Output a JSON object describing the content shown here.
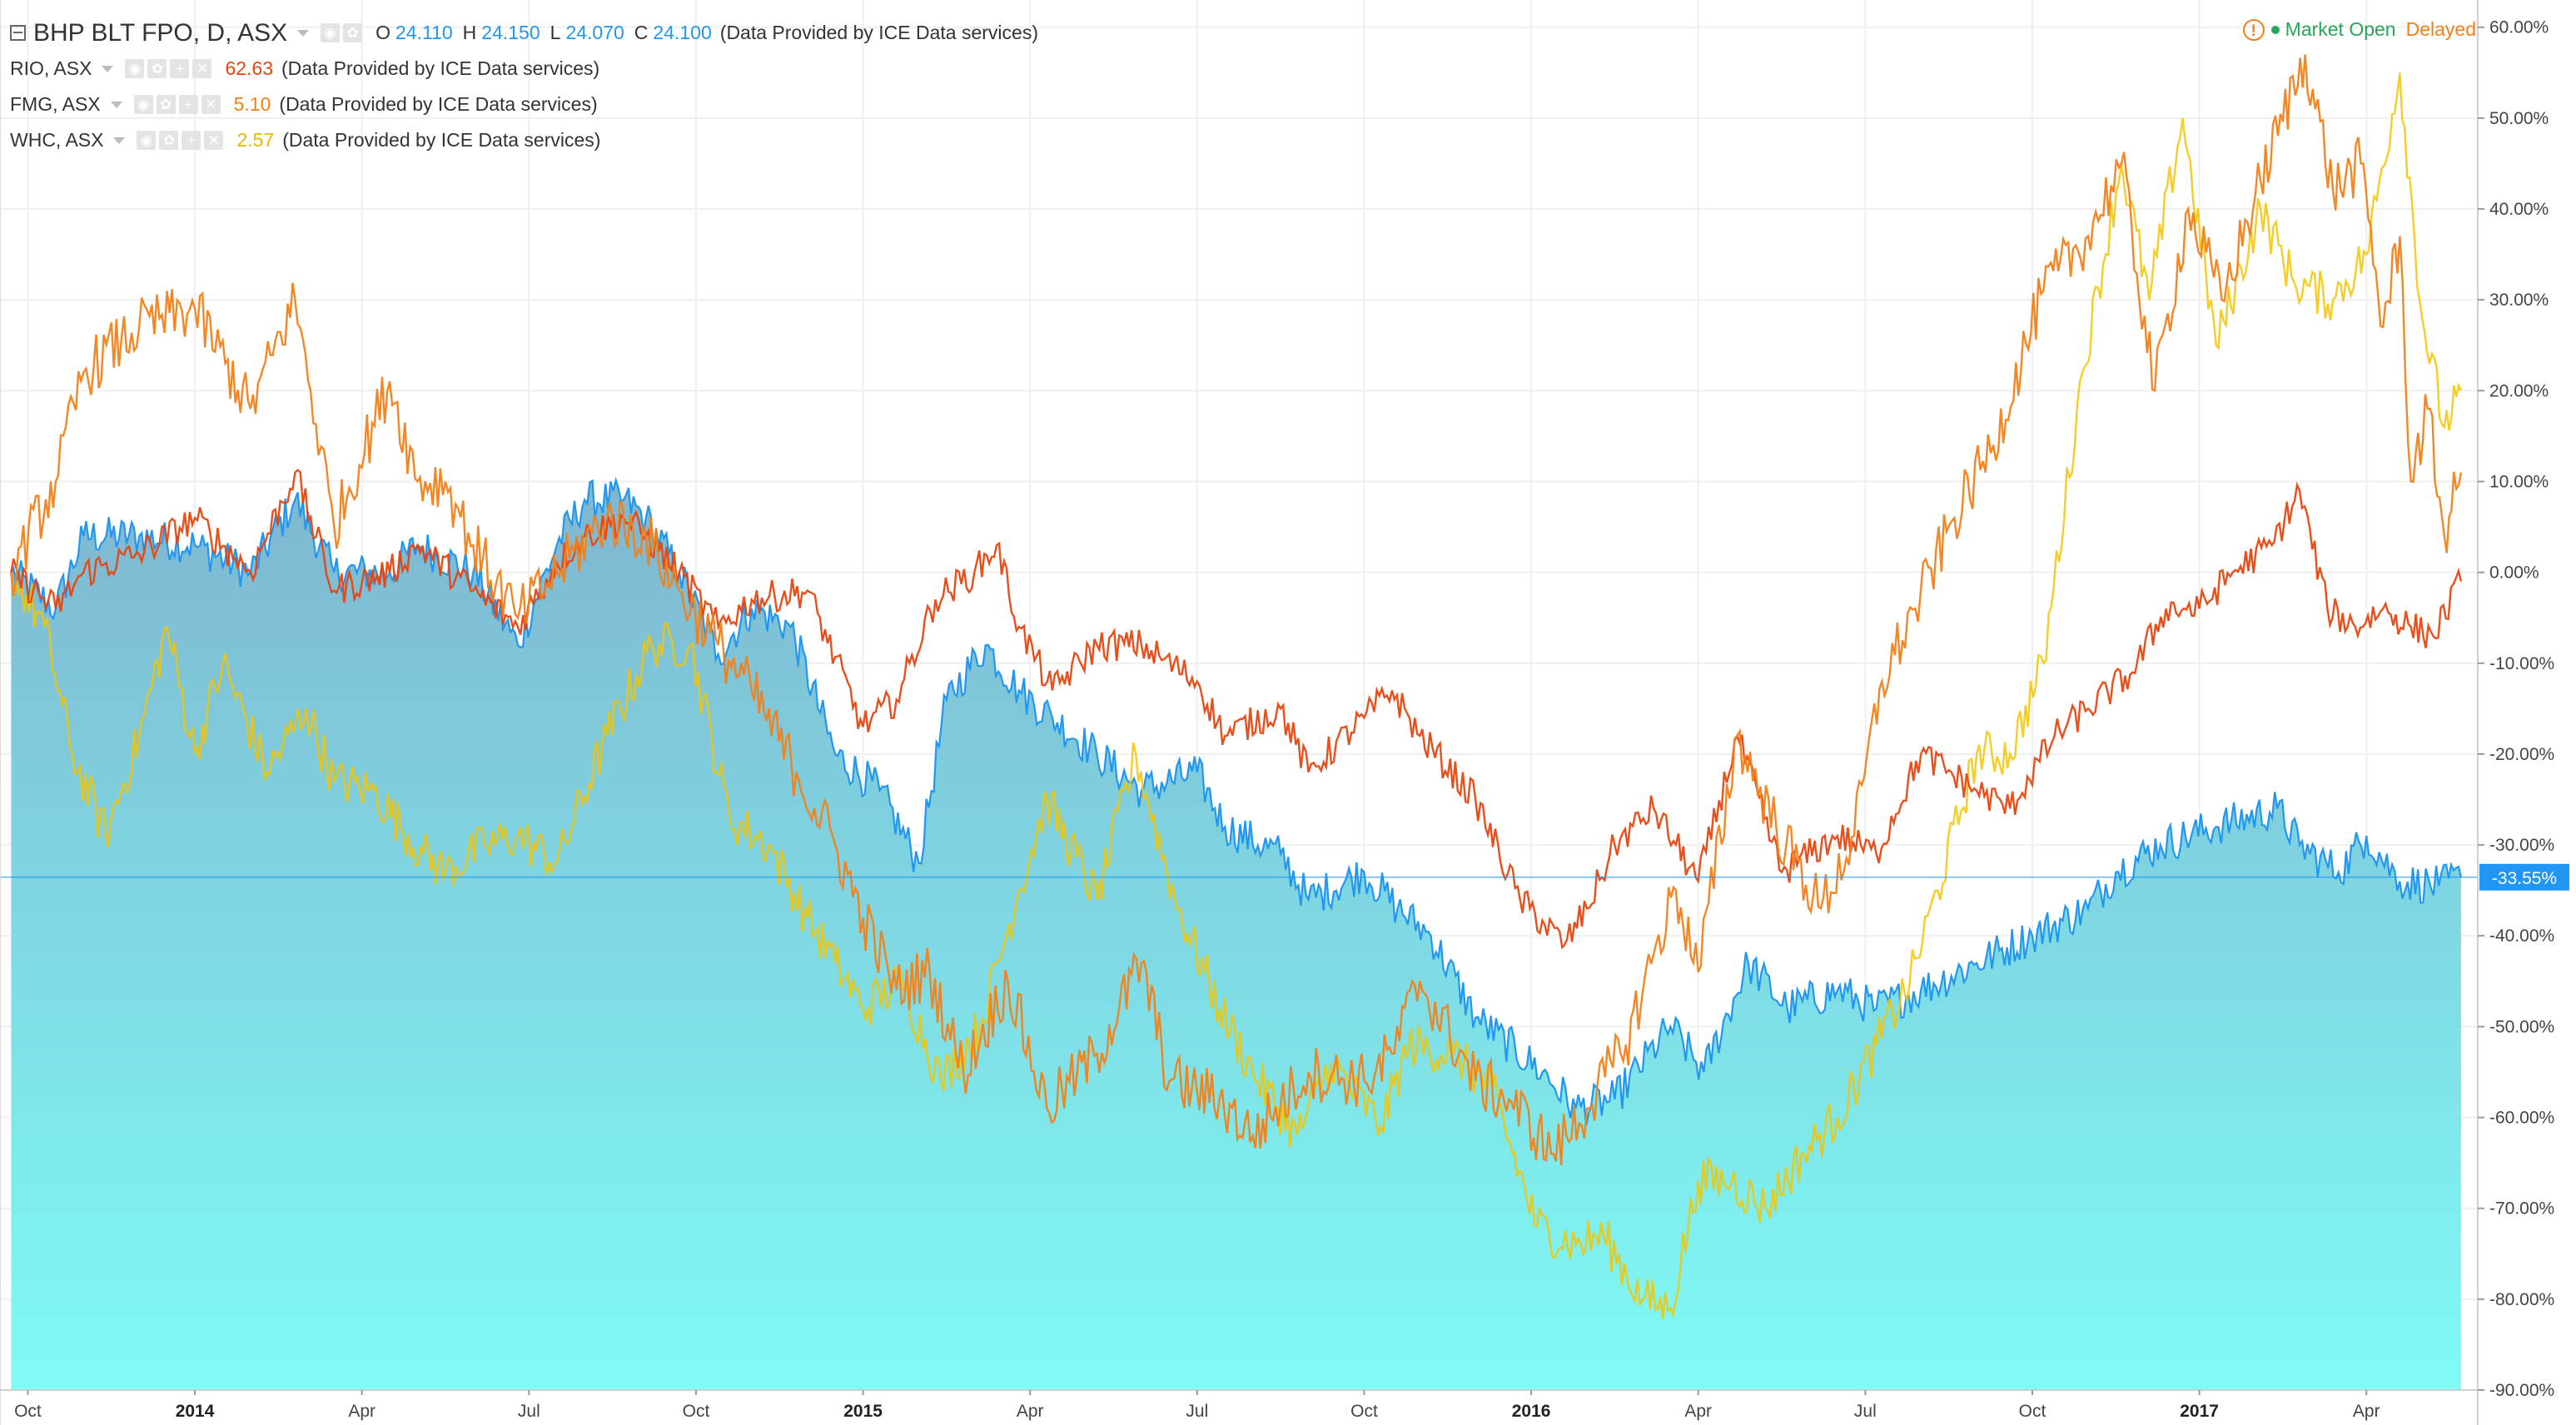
{
  "legend": {
    "main": {
      "symbol": "BHP BLT FPO, D, ASX",
      "o_label": "O",
      "o": "24.110",
      "h_label": "H",
      "h": "24.150",
      "l_label": "L",
      "l": "24.070",
      "c_label": "C",
      "c": "24.100",
      "provider": "(Data Provided by ICE Data services)"
    },
    "compare": [
      {
        "symbol": "RIO, ASX",
        "value": "62.63",
        "color": "#e8440f",
        "provider": "(Data Provided by ICE Data services)"
      },
      {
        "symbol": "FMG, ASX",
        "value": "5.10",
        "color": "#f57f17",
        "provider": "(Data Provided by ICE Data services)"
      },
      {
        "symbol": "WHC, ASX",
        "value": "2.57",
        "color": "#f5c400",
        "provider": "(Data Provided by ICE Data services)"
      }
    ]
  },
  "status": {
    "alert_icon": "exclamation-circle-icon",
    "market": "Market Open",
    "delay": "Delayed"
  },
  "colors": {
    "bhp_line": "#2196f3",
    "bhp_fill_top": "#7fb6d0",
    "bhp_fill_bottom": "#7ffbf5",
    "rio": "#e8440f",
    "fmg": "#f57f17",
    "whc": "#f5c400",
    "grid": "#efefef",
    "price_tag": "#2196f3"
  },
  "chart_data": {
    "type": "line",
    "title": "",
    "xlabel": "",
    "ylabel": "",
    "y_unit": "%",
    "ylim": [
      -90,
      63
    ],
    "grid": true,
    "legend": "top-left",
    "x_ticks": [
      {
        "label": "Oct",
        "t": 0,
        "year": false
      },
      {
        "label": "2014",
        "t": 3,
        "year": true
      },
      {
        "label": "Apr",
        "t": 6,
        "year": false
      },
      {
        "label": "Jul",
        "t": 9,
        "year": false
      },
      {
        "label": "Oct",
        "t": 12,
        "year": false
      },
      {
        "label": "2015",
        "t": 15,
        "year": true
      },
      {
        "label": "Apr",
        "t": 18,
        "year": false
      },
      {
        "label": "Jul",
        "t": 21,
        "year": false
      },
      {
        "label": "Oct",
        "t": 24,
        "year": false
      },
      {
        "label": "2016",
        "t": 27,
        "year": true
      },
      {
        "label": "Apr",
        "t": 30,
        "year": false
      },
      {
        "label": "Jul",
        "t": 33,
        "year": false
      },
      {
        "label": "Oct",
        "t": 36,
        "year": false
      },
      {
        "label": "2017",
        "t": 39,
        "year": true
      },
      {
        "label": "Apr",
        "t": 42,
        "year": false
      }
    ],
    "y_ticks": [
      "60.00%",
      "50.00%",
      "40.00%",
      "30.00%",
      "20.00%",
      "10.00%",
      "0.00%",
      "-10.00%",
      "-20.00%",
      "-30.00%",
      "-40.00%",
      "-50.00%",
      "-60.00%",
      "-70.00%",
      "-80.00%",
      "-90.00%"
    ],
    "y_tick_values": [
      60,
      50,
      40,
      30,
      20,
      10,
      0,
      -10,
      -20,
      -30,
      -40,
      -50,
      -60,
      -70,
      -80,
      -90
    ],
    "last_value_label": "-33.55%",
    "last_value": -33.55,
    "series": [
      {
        "name": "BHP BLT FPO, D, ASX",
        "style": "area",
        "points": [
          [
            -0.3,
            0
          ],
          [
            0.5,
            -4
          ],
          [
            1,
            4
          ],
          [
            2,
            4
          ],
          [
            3,
            3
          ],
          [
            4,
            0
          ],
          [
            4.8,
            8
          ],
          [
            5.5,
            0
          ],
          [
            6.5,
            0
          ],
          [
            7,
            3
          ],
          [
            8,
            0
          ],
          [
            8.8,
            -8
          ],
          [
            9.5,
            3
          ],
          [
            10,
            8
          ],
          [
            10.7,
            8
          ],
          [
            11.1,
            6
          ],
          [
            11.7,
            0
          ],
          [
            12.4,
            -9
          ],
          [
            13,
            -4
          ],
          [
            13.7,
            -6
          ],
          [
            14.5,
            -20
          ],
          [
            15.3,
            -24
          ],
          [
            16,
            -32
          ],
          [
            16.5,
            -14
          ],
          [
            17.2,
            -8
          ],
          [
            17.8,
            -13
          ],
          [
            18.4,
            -16
          ],
          [
            19.2,
            -20
          ],
          [
            20,
            -24
          ],
          [
            21,
            -22
          ],
          [
            21.5,
            -28
          ],
          [
            22.5,
            -31
          ],
          [
            23,
            -36
          ],
          [
            24,
            -33
          ],
          [
            24.6,
            -37
          ],
          [
            25.2,
            -40
          ],
          [
            26,
            -49
          ],
          [
            27.2,
            -55
          ],
          [
            27.8,
            -59
          ],
          [
            28.5,
            -58
          ],
          [
            29.5,
            -50
          ],
          [
            30.1,
            -55
          ],
          [
            30.9,
            -43
          ],
          [
            31.6,
            -48
          ],
          [
            32.5,
            -46
          ],
          [
            33.2,
            -48
          ],
          [
            34,
            -46
          ],
          [
            35,
            -43
          ],
          [
            36,
            -40
          ],
          [
            37,
            -37
          ],
          [
            37.5,
            -33
          ],
          [
            38.3,
            -30
          ],
          [
            39.3,
            -28
          ],
          [
            40.4,
            -26
          ],
          [
            40.8,
            -30
          ],
          [
            41.5,
            -33
          ],
          [
            42,
            -29
          ],
          [
            42.6,
            -34
          ],
          [
            43.3,
            -34.5
          ],
          [
            43.7,
            -33.55
          ]
        ]
      },
      {
        "name": "RIO, ASX",
        "style": "line",
        "points": [
          [
            -0.3,
            0
          ],
          [
            0.5,
            -4
          ],
          [
            1,
            0
          ],
          [
            2,
            2
          ],
          [
            3,
            6
          ],
          [
            4,
            0
          ],
          [
            4.8,
            11
          ],
          [
            5.5,
            -2
          ],
          [
            6.5,
            0
          ],
          [
            7,
            3
          ],
          [
            8,
            -2
          ],
          [
            8.8,
            -6
          ],
          [
            9.5,
            1
          ],
          [
            10,
            4
          ],
          [
            10.7,
            6
          ],
          [
            11.1,
            4
          ],
          [
            11.7,
            0
          ],
          [
            12.4,
            -6
          ],
          [
            13,
            -3
          ],
          [
            14,
            -2
          ],
          [
            15,
            -17
          ],
          [
            15.6,
            -14
          ],
          [
            16.3,
            -3
          ],
          [
            17,
            0
          ],
          [
            17.4,
            3
          ],
          [
            17.8,
            -6
          ],
          [
            18.4,
            -13
          ],
          [
            19.2,
            -8
          ],
          [
            20,
            -8
          ],
          [
            21,
            -12
          ],
          [
            21.5,
            -18
          ],
          [
            22.5,
            -15
          ],
          [
            23,
            -22
          ],
          [
            24,
            -16
          ],
          [
            24.5,
            -13
          ],
          [
            25,
            -18
          ],
          [
            26,
            -25
          ],
          [
            26.8,
            -36
          ],
          [
            27.6,
            -41
          ],
          [
            28,
            -37
          ],
          [
            28.5,
            -30
          ],
          [
            29.2,
            -26
          ],
          [
            30,
            -34
          ],
          [
            30.7,
            -18
          ],
          [
            31.5,
            -33
          ],
          [
            32.5,
            -29
          ],
          [
            33.2,
            -31
          ],
          [
            34,
            -20
          ],
          [
            35,
            -24
          ],
          [
            35.6,
            -26
          ],
          [
            36.4,
            -18
          ],
          [
            37,
            -15
          ],
          [
            37.8,
            -11
          ],
          [
            38.4,
            -4
          ],
          [
            39,
            -4
          ],
          [
            39.6,
            0
          ],
          [
            40.3,
            3
          ],
          [
            40.8,
            9
          ],
          [
            41.3,
            -4
          ],
          [
            41.8,
            -6
          ],
          [
            42.3,
            -4
          ],
          [
            42.8,
            -6
          ],
          [
            43.2,
            -7
          ],
          [
            43.7,
            -1
          ]
        ]
      },
      {
        "name": "FMG, ASX",
        "style": "line",
        "points": [
          [
            -0.3,
            0
          ],
          [
            0.5,
            10
          ],
          [
            1,
            22
          ],
          [
            2,
            27
          ],
          [
            3,
            29
          ],
          [
            4,
            18
          ],
          [
            4.8,
            30
          ],
          [
            5.5,
            5
          ],
          [
            6.5,
            21
          ],
          [
            7,
            10
          ],
          [
            7.5,
            10
          ],
          [
            8,
            3
          ],
          [
            8.8,
            -5
          ],
          [
            9.5,
            0
          ],
          [
            10.4,
            6
          ],
          [
            11.1,
            4
          ],
          [
            11.7,
            -2
          ],
          [
            12.4,
            -8
          ],
          [
            13,
            -13
          ],
          [
            13.8,
            -22
          ],
          [
            14.5,
            -30
          ],
          [
            15,
            -38
          ],
          [
            15.6,
            -46
          ],
          [
            16.2,
            -44
          ],
          [
            16.8,
            -55
          ],
          [
            17.6,
            -45
          ],
          [
            18.3,
            -59
          ],
          [
            19.2,
            -53
          ],
          [
            20,
            -43
          ],
          [
            20.5,
            -56
          ],
          [
            21.4,
            -58
          ],
          [
            22,
            -62
          ],
          [
            23,
            -55
          ],
          [
            24,
            -56
          ],
          [
            24.5,
            -53
          ],
          [
            25,
            -45
          ],
          [
            26,
            -56
          ],
          [
            26.6,
            -58
          ],
          [
            27.4,
            -64
          ],
          [
            28,
            -59
          ],
          [
            28.7,
            -52
          ],
          [
            29.2,
            -42
          ],
          [
            29.6,
            -35
          ],
          [
            30,
            -44
          ],
          [
            30.7,
            -18
          ],
          [
            31.4,
            -28
          ],
          [
            32.2,
            -37
          ],
          [
            32.8,
            -29
          ],
          [
            33.3,
            -12
          ],
          [
            33.9,
            -4
          ],
          [
            34.6,
            6
          ],
          [
            35.3,
            14
          ],
          [
            36.2,
            31
          ],
          [
            37,
            37
          ],
          [
            37.6,
            45
          ],
          [
            38.2,
            20
          ],
          [
            38.8,
            40
          ],
          [
            39.4,
            30
          ],
          [
            40.1,
            43
          ],
          [
            40.9,
            57
          ],
          [
            41.4,
            42
          ],
          [
            41.9,
            45
          ],
          [
            42.3,
            27
          ],
          [
            42.6,
            37
          ],
          [
            42.8,
            10
          ],
          [
            43.1,
            18
          ],
          [
            43.4,
            4
          ],
          [
            43.7,
            11
          ]
        ]
      },
      {
        "name": "WHC, ASX",
        "style": "line",
        "points": [
          [
            -0.3,
            0
          ],
          [
            0.3,
            -6
          ],
          [
            0.8,
            -20
          ],
          [
            1.4,
            -29
          ],
          [
            2,
            -18
          ],
          [
            2.5,
            -6
          ],
          [
            3,
            -20
          ],
          [
            3.5,
            -10
          ],
          [
            4.3,
            -22
          ],
          [
            5,
            -15
          ],
          [
            5.5,
            -23
          ],
          [
            6.2,
            -24
          ],
          [
            7.1,
            -31
          ],
          [
            7.5,
            -33
          ],
          [
            8.2,
            -30
          ],
          [
            8.8,
            -29
          ],
          [
            9.5,
            -32
          ],
          [
            10.4,
            -18
          ],
          [
            11.2,
            -8
          ],
          [
            11.9,
            -8
          ],
          [
            12.6,
            -27
          ],
          [
            13.3,
            -30
          ],
          [
            14,
            -38
          ],
          [
            14.5,
            -43
          ],
          [
            15,
            -48
          ],
          [
            15.7,
            -45
          ],
          [
            16.4,
            -56
          ],
          [
            17.1,
            -50
          ],
          [
            17.8,
            -35
          ],
          [
            18.3,
            -25
          ],
          [
            19.2,
            -36
          ],
          [
            19.9,
            -20
          ],
          [
            20.6,
            -36
          ],
          [
            21.4,
            -48
          ],
          [
            22,
            -55
          ],
          [
            22.8,
            -62
          ],
          [
            23.4,
            -54
          ],
          [
            24.3,
            -61
          ],
          [
            24.8,
            -52
          ],
          [
            25.6,
            -53
          ],
          [
            26.3,
            -57
          ],
          [
            27.1,
            -72
          ],
          [
            27.8,
            -74
          ],
          [
            28.3,
            -73
          ],
          [
            29,
            -80
          ],
          [
            29.5,
            -81
          ],
          [
            30,
            -67
          ],
          [
            30.6,
            -67
          ],
          [
            31.2,
            -70
          ],
          [
            31.9,
            -64
          ],
          [
            32.5,
            -60
          ],
          [
            33.2,
            -52
          ],
          [
            33.8,
            -45
          ],
          [
            34.3,
            -35
          ],
          [
            35,
            -20
          ],
          [
            35.6,
            -20
          ],
          [
            36.2,
            -10
          ],
          [
            36.9,
            22
          ],
          [
            37.6,
            45
          ],
          [
            38.1,
            30
          ],
          [
            38.7,
            50
          ],
          [
            39.3,
            25
          ],
          [
            40.1,
            40
          ],
          [
            40.7,
            32
          ],
          [
            41.4,
            30
          ],
          [
            42,
            35
          ],
          [
            42.6,
            55
          ],
          [
            43,
            28
          ],
          [
            43.4,
            16
          ],
          [
            43.7,
            20
          ]
        ]
      }
    ]
  }
}
